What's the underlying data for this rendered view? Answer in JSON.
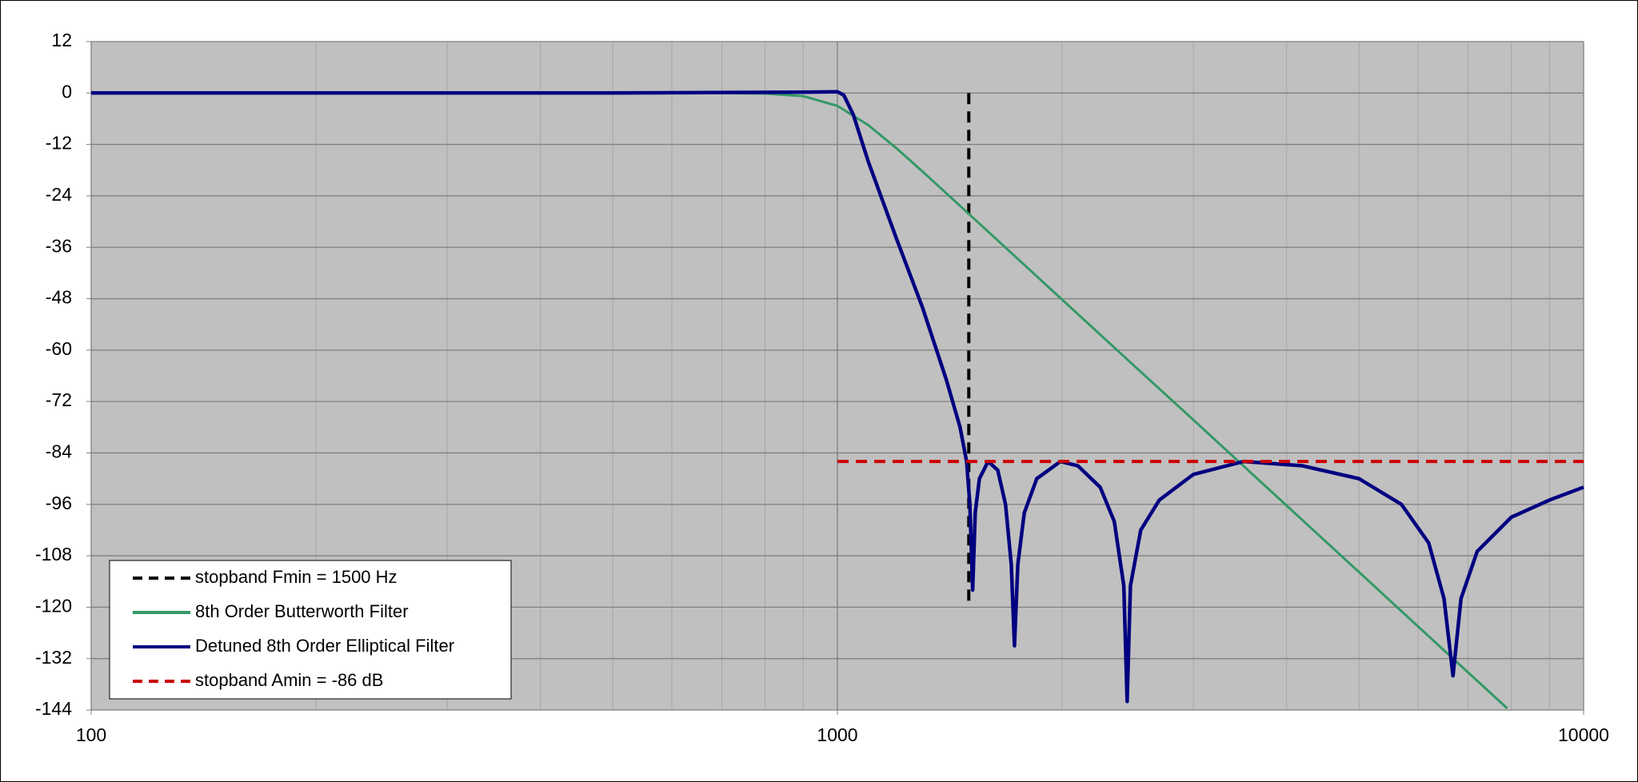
{
  "chart_data": {
    "type": "line",
    "log_x": true,
    "xlim": [
      100,
      10000
    ],
    "xticks": [
      100,
      1000,
      10000
    ],
    "xminor": [
      200,
      300,
      400,
      500,
      600,
      700,
      800,
      900,
      2000,
      3000,
      4000,
      5000,
      6000,
      7000,
      8000,
      9000
    ],
    "ylim": [
      -144,
      12
    ],
    "yticks": [
      12,
      0,
      -12,
      -24,
      -36,
      -48,
      -60,
      -72,
      -84,
      -96,
      -108,
      -120,
      -132,
      -144
    ],
    "grid": true,
    "legend": "lower left",
    "series": [
      {
        "name": "stopband Fmin = 1500 Hz",
        "color": "#000000",
        "dashed": true,
        "x": [
          1500,
          1500
        ],
        "values": [
          0,
          -120
        ]
      },
      {
        "name": "8th Order Butterworth Filter",
        "color": "#339966",
        "dashed": false,
        "x": [
          100,
          500,
          700,
          800,
          900,
          1000,
          1100,
          1200,
          1300,
          1500,
          1700,
          2000,
          2500,
          3000,
          4000,
          5000,
          6000,
          7000,
          7900
        ],
        "values": [
          0,
          0,
          -0.01,
          -0.12,
          -0.74,
          -3,
          -7.5,
          -12.9,
          -18.3,
          -28.2,
          -36.9,
          -48.2,
          -63.7,
          -76.3,
          -96.3,
          -111.8,
          -124.5,
          -135.2,
          -143.6
        ]
      },
      {
        "name": "Detuned 8th Order Elliptical Filter",
        "color": "#000080",
        "dashed": false,
        "x": [
          100,
          500,
          900,
          1000,
          1020,
          1050,
          1100,
          1200,
          1300,
          1400,
          1460,
          1490,
          1505,
          1518,
          1530,
          1550,
          1592,
          1640,
          1680,
          1710,
          1727,
          1745,
          1780,
          1850,
          1990,
          2100,
          2250,
          2350,
          2420,
          2445,
          2470,
          2550,
          2700,
          3000,
          3500,
          4200,
          5000,
          5700,
          6200,
          6500,
          6683,
          6850,
          7200,
          8000,
          9000,
          10000
        ],
        "values": [
          0,
          0,
          0.2,
          0.3,
          -0.5,
          -5,
          -16,
          -34,
          -50,
          -67,
          -78,
          -86,
          -96,
          -116,
          -98,
          -90,
          -86,
          -88,
          -96,
          -110,
          -129,
          -110,
          -98,
          -90,
          -86,
          -87,
          -92,
          -100,
          -115,
          -142,
          -115,
          -102,
          -95,
          -89,
          -86,
          -87,
          -90,
          -96,
          -105,
          -118,
          -136,
          -118,
          -107,
          -99,
          -95,
          -92
        ]
      },
      {
        "name": "stopband Amin = -86 dB",
        "color": "#cc0000",
        "dashed": true,
        "x": [
          1000,
          10000
        ],
        "values": [
          -86,
          -86
        ]
      }
    ]
  }
}
